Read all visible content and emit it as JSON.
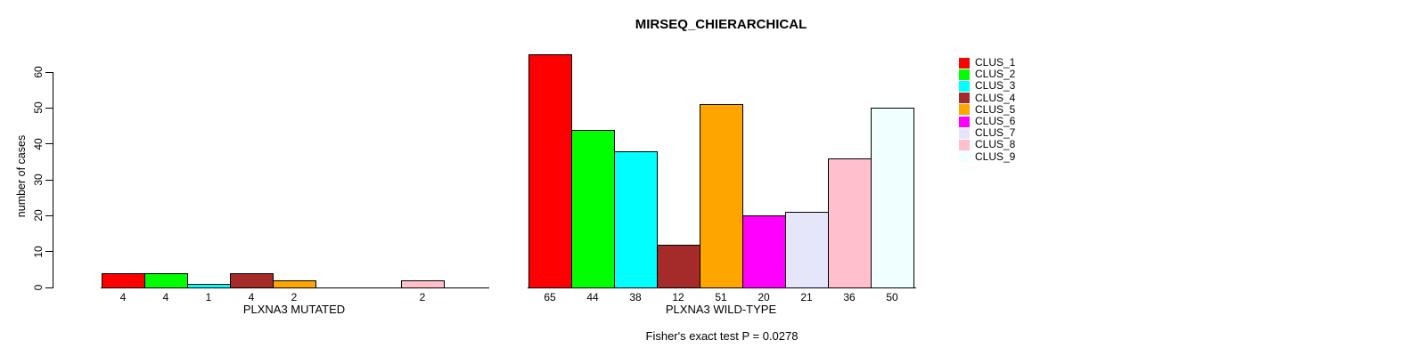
{
  "title": "MIRSEQ_CHIERARCHICAL",
  "caption": "Fisher's exact test P = 0.0278",
  "legend": {
    "items": [
      {
        "label": "CLUS_1",
        "color": "#FF0000"
      },
      {
        "label": "CLUS_2",
        "color": "#00FF00"
      },
      {
        "label": "CLUS_3",
        "color": "#00FFFF"
      },
      {
        "label": "CLUS_4",
        "color": "#A52A2A"
      },
      {
        "label": "CLUS_5",
        "color": "#FFA500"
      },
      {
        "label": "CLUS_6",
        "color": "#FF00FF"
      },
      {
        "label": "CLUS_7",
        "color": "#E6E6FA"
      },
      {
        "label": "CLUS_8",
        "color": "#FFC0CB"
      },
      {
        "label": "CLUS_9",
        "color": "#F0FFFF"
      }
    ]
  },
  "chart_data": {
    "type": "bar",
    "title": "MIRSEQ_CHIERARCHICAL",
    "ylabel": "number of cases",
    "ylim": [
      0,
      60
    ],
    "yticks": [
      0,
      10,
      20,
      30,
      40,
      50,
      60
    ],
    "grid": false,
    "legend_position": "right",
    "categories": [
      "CLUS_1",
      "CLUS_2",
      "CLUS_3",
      "CLUS_4",
      "CLUS_5",
      "CLUS_6",
      "CLUS_7",
      "CLUS_8",
      "CLUS_9"
    ],
    "colors": [
      "#FF0000",
      "#00FF00",
      "#00FFFF",
      "#A52A2A",
      "#FFA500",
      "#FF00FF",
      "#E6E6FA",
      "#FFC0CB",
      "#F0FFFF"
    ],
    "panels": [
      {
        "xlabel": "PLXNA3 MUTATED",
        "values": [
          4,
          4,
          1,
          4,
          2,
          0,
          0,
          2,
          0
        ]
      },
      {
        "xlabel": "PLXNA3 WILD-TYPE",
        "values": [
          65,
          44,
          38,
          12,
          51,
          20,
          21,
          36,
          50
        ]
      }
    ],
    "annotation": "Fisher's exact test P = 0.0278"
  }
}
